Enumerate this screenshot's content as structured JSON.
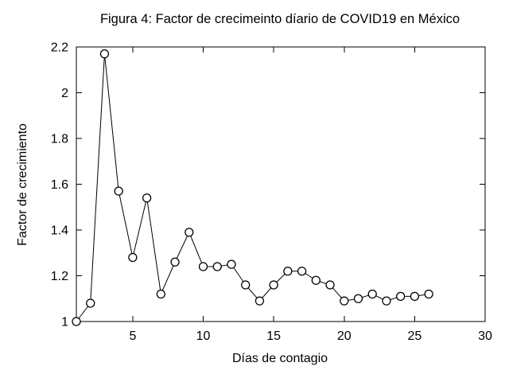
{
  "chart_data": {
    "type": "line",
    "title": "Figura 4: Factor de crecimeinto díario de COVID19 en México",
    "xlabel": "Días de contagio",
    "ylabel": "Factor de crecimiento",
    "xlim": [
      1,
      30
    ],
    "ylim": [
      1,
      2.2
    ],
    "xticks": {
      "values": [
        5,
        10,
        15,
        20,
        25,
        30
      ],
      "labels": [
        "5",
        "10",
        "15",
        "20",
        "25",
        "30"
      ]
    },
    "yticks": {
      "values": [
        1,
        1.2,
        1.4,
        1.6,
        1.8,
        2,
        2.2
      ],
      "labels": [
        "1",
        "1.2",
        "1.4",
        "1.6",
        "1.8",
        "2",
        "2.2"
      ]
    },
    "grid": false,
    "legend_position": "none",
    "marker_style": "open-circle",
    "colors": {
      "line": "#000000",
      "marker_stroke": "#000000",
      "marker_fill": "#ffffff",
      "text": "#000000",
      "background": "#ffffff"
    },
    "series": [
      {
        "x": [
          1,
          2,
          3,
          4,
          5,
          6,
          7,
          8,
          9,
          10,
          11,
          12,
          13,
          14,
          15,
          16,
          17,
          18,
          19,
          20,
          21,
          22,
          23,
          24,
          25,
          26
        ],
        "y": [
          1.0,
          1.08,
          2.17,
          1.57,
          1.28,
          1.54,
          1.12,
          1.26,
          1.39,
          1.24,
          1.24,
          1.25,
          1.16,
          1.09,
          1.16,
          1.22,
          1.22,
          1.18,
          1.16,
          1.09,
          1.1,
          1.12,
          1.09,
          1.11,
          1.11,
          1.12
        ]
      }
    ]
  }
}
